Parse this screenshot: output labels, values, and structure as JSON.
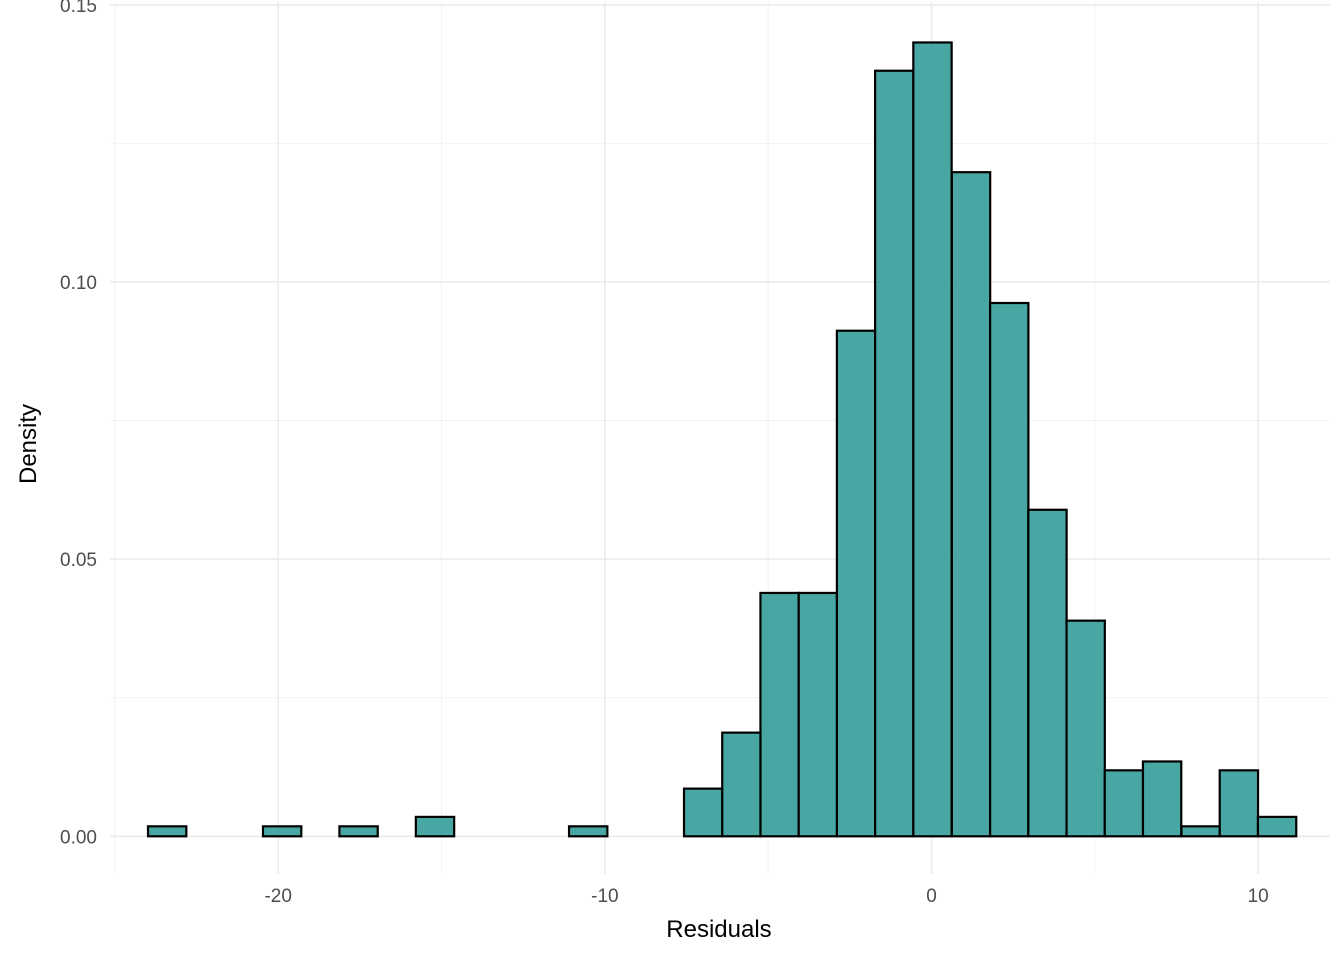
{
  "chart_data": {
    "type": "bar",
    "xlabel": "Residuals",
    "ylabel": "Density",
    "xlim": [
      -25.15,
      12.2
    ],
    "ylim": [
      -0.0068,
      0.1505
    ],
    "x_ticks": [
      -20,
      -10,
      0,
      10
    ],
    "x_tick_labels": [
      "-20",
      "-10",
      "0",
      "10"
    ],
    "y_ticks": [
      0.0,
      0.05,
      0.1,
      0.15
    ],
    "y_tick_labels": [
      "0.00",
      "0.05",
      "0.10",
      "0.15"
    ],
    "grid": true,
    "fill_color": "#309b96",
    "fill_opacity": 0.88,
    "edge_color": "#000000",
    "bin_width": 1.173,
    "bin_centers": [
      -23.4,
      -22.23,
      -21.05,
      -19.88,
      -18.71,
      -17.54,
      -16.37,
      -15.2,
      -14.02,
      -12.85,
      -11.68,
      -10.51,
      -9.34,
      -8.17,
      -6.99,
      -5.82,
      -4.65,
      -3.48,
      -2.31,
      -1.14,
      0.03,
      1.21,
      2.38,
      3.55,
      4.72,
      5.89,
      7.06,
      8.24,
      9.41,
      10.58
    ],
    "values": [
      0.0018,
      0.0,
      0.0,
      0.0018,
      0.0,
      0.0018,
      0.0,
      0.0035,
      0.0,
      0.0,
      0.0,
      0.0018,
      0.0,
      0.0,
      0.0086,
      0.0187,
      0.0439,
      0.0439,
      0.0912,
      0.1381,
      0.1432,
      0.1198,
      0.0962,
      0.0589,
      0.0389,
      0.0119,
      0.0135,
      0.0018,
      0.0119,
      0.0035
    ]
  }
}
